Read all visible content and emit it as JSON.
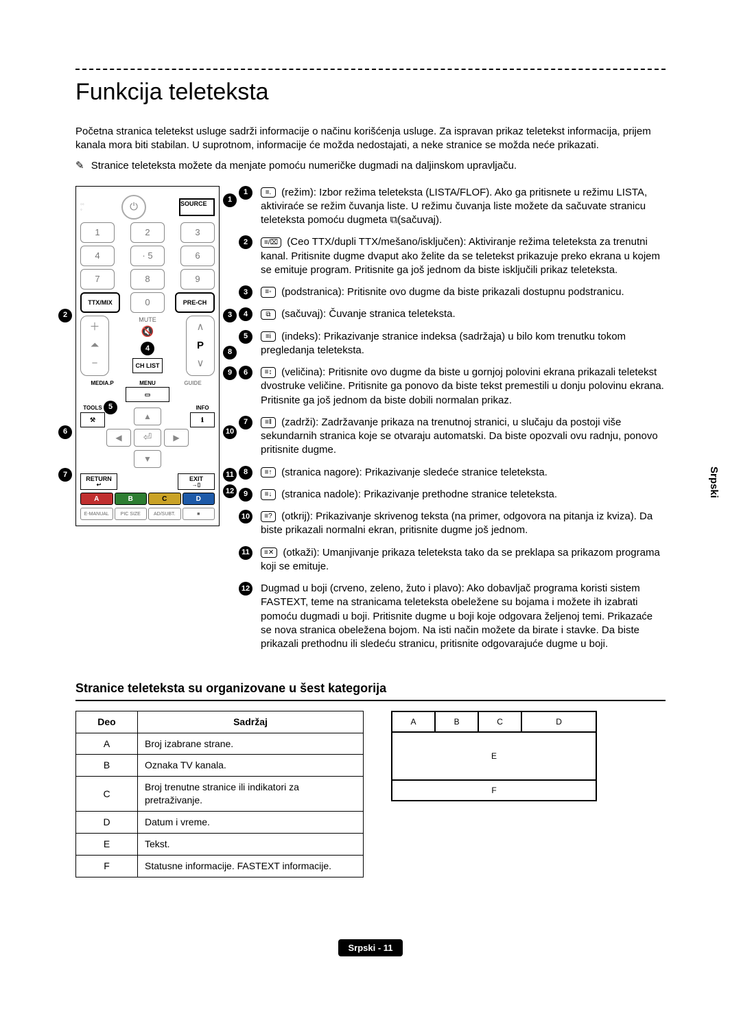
{
  "page": {
    "title": "Funkcija teleteksta",
    "intro": "Početna stranica teletekst usluge sadrži informacije o načinu korišćenja usluge. Za ispravan prikaz teletekst informacija, prijem kanala mora biti stabilan. U suprotnom, informacije će možda nedostajati, a neke stranice se možda neće prikazati.",
    "note": "Stranice teleteksta možete da menjate pomoću numeričke dugmadi na daljinskom upravljaču.",
    "side_label": "Srpski",
    "footer": "Srpski - 11"
  },
  "remote": {
    "source": "SOURCE",
    "ttxmix": "TTX/MIX",
    "prech": "PRE-CH",
    "mute": "MUTE",
    "chlist": "CH LIST",
    "media": "MEDIA.P",
    "menu": "MENU",
    "guide": "GUIDE",
    "tools": "TOOLS",
    "info": "INFO",
    "return": "RETURN",
    "exit": "EXIT",
    "colors": {
      "a": "A",
      "b": "B",
      "c": "C",
      "d": "D"
    },
    "color_bg": {
      "a": "#c03030",
      "b": "#2e7d32",
      "c": "#c9a227",
      "d": "#1e5aa8"
    },
    "bottom": [
      "E-MANUAL",
      "PIC SIZE",
      "AD/SUBT.",
      "■"
    ],
    "p_label": "P"
  },
  "items": [
    {
      "n": "1",
      "icon": "≡.",
      "text": " (režim): Izbor režima teleteksta (LISTA/FLOF). Ako ga pritisnete u režimu LISTA, aktiviraće se režim čuvanja liste. U režimu čuvanja liste možete da sačuvate stranicu teleteksta pomoću dugmeta ⧉(sačuvaj)."
    },
    {
      "n": "2",
      "icon": "≡/⌧",
      "text": " (Ceo TTX/dupli TTX/mešano/isključen): Aktiviranje režima teleteksta za trenutni kanal. Pritisnite dugme dvaput ako želite da se teletekst prikazuje preko ekrana u kojem se emituje program. Pritisnite ga još jednom da biste isključili prikaz teleteksta."
    },
    {
      "n": "3",
      "icon": "≡◦",
      "text": " (podstranica): Pritisnite ovo dugme da biste prikazali dostupnu podstranicu."
    },
    {
      "n": "4",
      "icon": "⧉",
      "text": " (sačuvaj): Čuvanje stranica teleteksta."
    },
    {
      "n": "5",
      "icon": "≡i",
      "text": " (indeks): Prikazivanje stranice indeksa (sadržaja) u bilo kom trenutku tokom pregledanja teleteksta."
    },
    {
      "n": "6",
      "icon": "≡↕",
      "text": " (veličina): Pritisnite ovo dugme da biste u gornjoj polovini ekrana prikazali teletekst dvostruke veličine. Pritisnite ga ponovo da biste tekst premestili u donju polovinu ekrana. Pritisnite ga još jednom da biste dobili normalan prikaz."
    },
    {
      "n": "7",
      "icon": "≡‖",
      "text": " (zadrži): Zadržavanje prikaza na trenutnoj stranici, u slučaju da postoji više sekundarnih stranica koje se otvaraju automatski. Da biste opozvali ovu radnju, ponovo pritisnite dugme."
    },
    {
      "n": "8",
      "icon": "≡↑",
      "text": " (stranica nagore): Prikazivanje sledeće stranice teleteksta."
    },
    {
      "n": "9",
      "icon": "≡↓",
      "text": " (stranica nadole): Prikazivanje prethodne stranice teleteksta."
    },
    {
      "n": "10",
      "icon": "≡?",
      "text": " (otkrij): Prikazivanje skrivenog teksta (na primer, odgovora na pitanja iz kviza). Da biste prikazali normalni ekran, pritisnite dugme još jednom."
    },
    {
      "n": "11",
      "icon": "≡✕",
      "text": " (otkaži): Umanjivanje prikaza teleteksta tako da se preklapa sa prikazom programa koji se emituje."
    },
    {
      "n": "12",
      "icon": "",
      "text": "Dugmad u boji (crveno, zeleno, žuto i plavo): Ako dobavljač programa koristi sistem FASTEXT, teme na stranicama teleteksta obeležene su bojama i možete ih izabrati pomoću dugmadi u boji. Pritisnite dugme u boji koje odgovara željenoj temi. Prikazaće se nova stranica obeležena bojom. Na isti način možete da birate i stavke. Da biste prikazali prethodnu ili sledeću stranicu, pritisnite odgovarajuće dugme u boji."
    }
  ],
  "subheading": "Stranice teleteksta su organizovane u šest kategorija",
  "table": {
    "head": {
      "deo": "Deo",
      "sadrzaj": "Sadržaj"
    },
    "rows": [
      {
        "a": "A",
        "b": "Broj izabrane strane."
      },
      {
        "a": "B",
        "b": "Oznaka TV kanala."
      },
      {
        "a": "C",
        "b": "Broj trenutne stranice ili indikatori za pretraživanje."
      },
      {
        "a": "D",
        "b": "Datum i vreme."
      },
      {
        "a": "E",
        "b": "Tekst."
      },
      {
        "a": "F",
        "b": "Statusne informacije. FASTEXT informacije."
      }
    ]
  },
  "layout": {
    "a": "A",
    "b": "B",
    "c": "C",
    "d": "D",
    "e": "E",
    "f": "F"
  }
}
